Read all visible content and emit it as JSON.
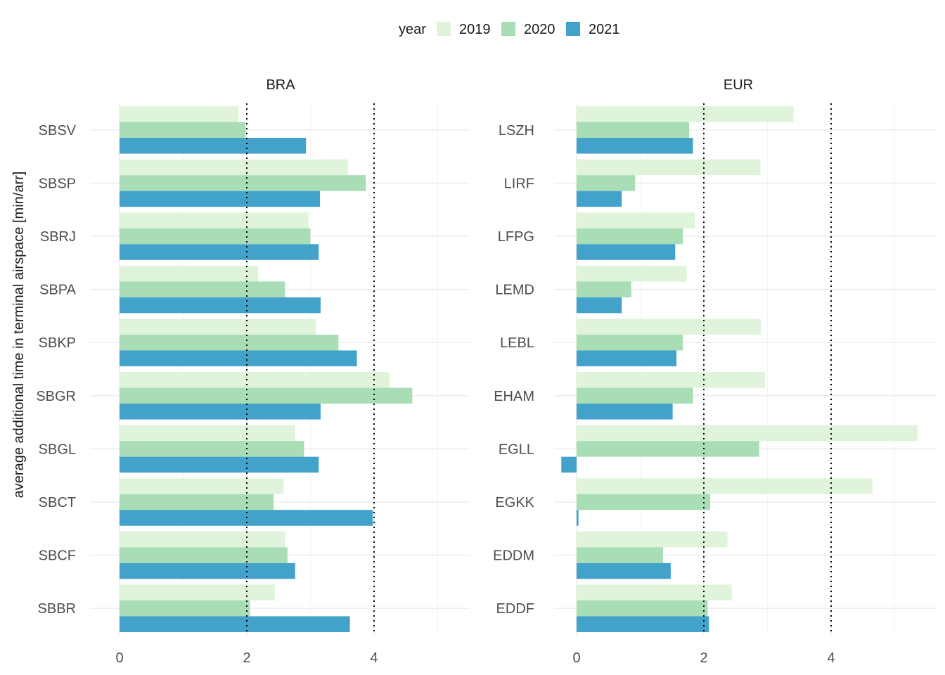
{
  "chart_data": {
    "type": "bar",
    "orientation": "horizontal",
    "ylabel": "average additional time in terminal airspace [min/arr]",
    "legend": {
      "title": "year",
      "position": "top",
      "entries": [
        {
          "name": "2019",
          "color": "#e0f3db"
        },
        {
          "name": "2020",
          "color": "#a8ddb5"
        },
        {
          "name": "2021",
          "color": "#43a2ca"
        }
      ]
    },
    "xticks": [
      "0",
      "2",
      "4"
    ],
    "reference_lines": [
      2,
      4
    ],
    "grid": true,
    "panels": [
      {
        "title": "BRA",
        "xlim": [
          -0.15,
          5.5
        ],
        "categories": [
          "SBBR",
          "SBCF",
          "SBCT",
          "SBGL",
          "SBGR",
          "SBKP",
          "SBPA",
          "SBRJ",
          "SBSP",
          "SBSV"
        ],
        "series": [
          {
            "name": "2019",
            "values": [
              2.44,
              2.6,
              2.58,
              2.76,
              4.24,
              3.09,
              2.18,
              2.97,
              3.59,
              1.87
            ]
          },
          {
            "name": "2020",
            "values": [
              2.05,
              2.64,
              2.42,
              2.9,
              4.6,
              3.44,
              2.6,
              3.0,
              3.87,
              1.98
            ]
          },
          {
            "name": "2021",
            "values": [
              3.62,
              2.76,
              3.98,
              3.13,
              3.16,
              3.73,
              3.16,
              3.13,
              3.15,
              2.93
            ]
          }
        ]
      },
      {
        "title": "EUR",
        "xlim": [
          -0.35,
          5.7
        ],
        "categories": [
          "EDDF",
          "EDDM",
          "EGKK",
          "EGLL",
          "EHAM",
          "LEBL",
          "LEMD",
          "LFPG",
          "LIRF",
          "LSZH"
        ],
        "series": [
          {
            "name": "2019",
            "values": [
              2.44,
              2.37,
              4.65,
              5.36,
              2.96,
              2.9,
              1.73,
              1.86,
              2.89,
              3.41
            ]
          },
          {
            "name": "2020",
            "values": [
              2.06,
              1.36,
              2.1,
              2.87,
              1.83,
              1.67,
              0.86,
              1.67,
              0.92,
              1.77
            ]
          },
          {
            "name": "2021",
            "values": [
              2.08,
              1.48,
              0.03,
              -0.24,
              1.51,
              1.57,
              0.71,
              1.55,
              0.71,
              1.83
            ]
          }
        ]
      }
    ]
  }
}
